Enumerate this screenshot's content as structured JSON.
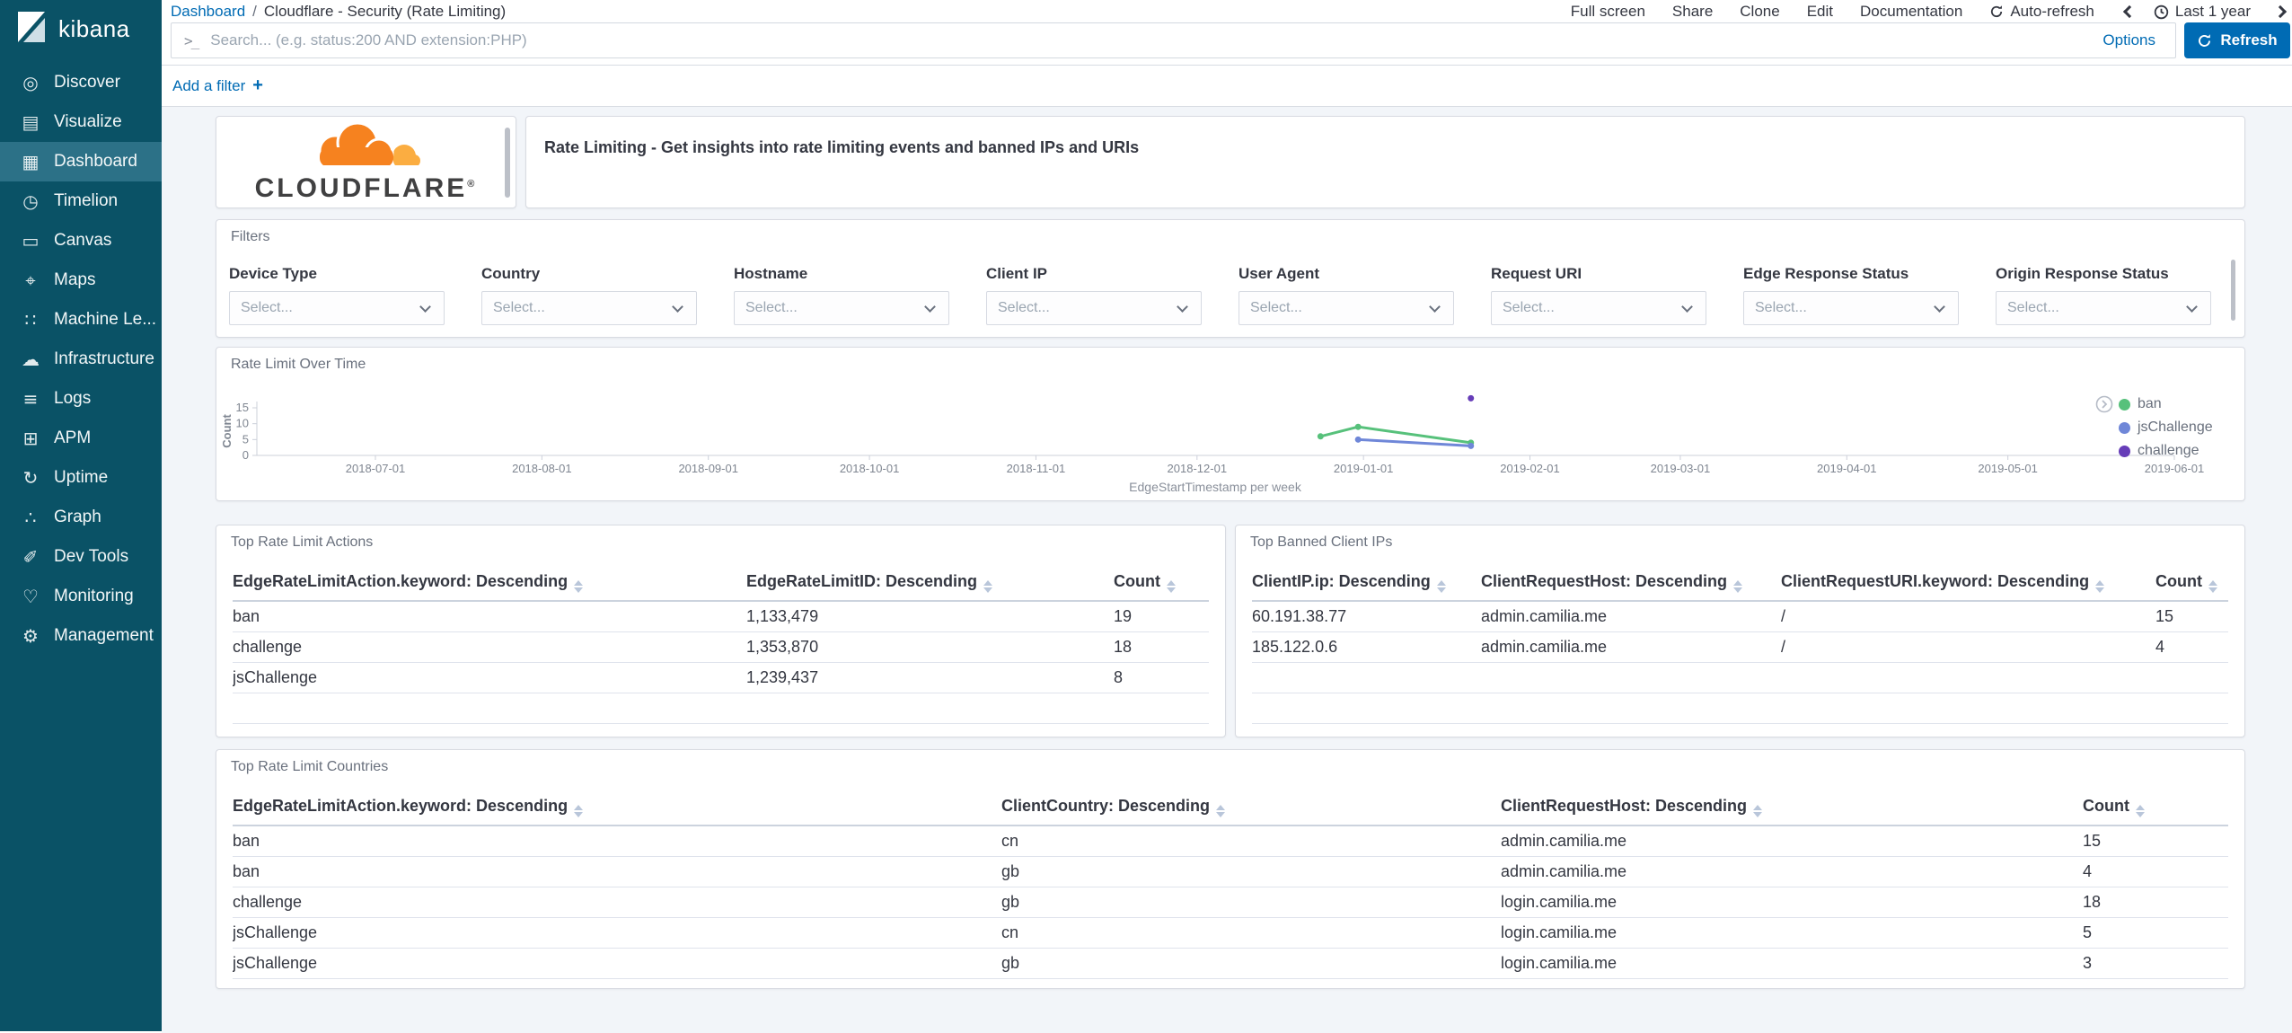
{
  "brand": {
    "app_name": "kibana"
  },
  "sidebar": {
    "items": [
      {
        "label": "Discover",
        "icon": "discover-icon",
        "glyph": "◎",
        "active": false
      },
      {
        "label": "Visualize",
        "icon": "visualize-icon",
        "glyph": "▤",
        "active": false
      },
      {
        "label": "Dashboard",
        "icon": "dashboard-icon",
        "glyph": "▦",
        "active": true
      },
      {
        "label": "Timelion",
        "icon": "timelion-icon",
        "glyph": "◷",
        "active": false
      },
      {
        "label": "Canvas",
        "icon": "canvas-icon",
        "glyph": "▭",
        "active": false
      },
      {
        "label": "Maps",
        "icon": "maps-icon",
        "glyph": "⌖",
        "active": false
      },
      {
        "label": "Machine Le...",
        "icon": "machine-learning-icon",
        "glyph": "∷",
        "active": false
      },
      {
        "label": "Infrastructure",
        "icon": "infrastructure-icon",
        "glyph": "☁",
        "active": false
      },
      {
        "label": "Logs",
        "icon": "logs-icon",
        "glyph": "≡",
        "active": false
      },
      {
        "label": "APM",
        "icon": "apm-icon",
        "glyph": "⊞",
        "active": false
      },
      {
        "label": "Uptime",
        "icon": "uptime-icon",
        "glyph": "↻",
        "active": false
      },
      {
        "label": "Graph",
        "icon": "graph-icon",
        "glyph": "∴",
        "active": false
      },
      {
        "label": "Dev Tools",
        "icon": "dev-tools-icon",
        "glyph": "✐",
        "active": false
      },
      {
        "label": "Monitoring",
        "icon": "monitoring-icon",
        "glyph": "♡",
        "active": false
      },
      {
        "label": "Management",
        "icon": "management-icon",
        "glyph": "⚙",
        "active": false
      }
    ]
  },
  "topbar": {
    "breadcrumb_root": "Dashboard",
    "breadcrumb_sep": "/",
    "breadcrumb_current": "Cloudflare - Security (Rate Limiting)",
    "menu": [
      "Full screen",
      "Share",
      "Clone",
      "Edit",
      "Documentation"
    ],
    "auto_refresh_label": "Auto-refresh",
    "time_range_label": "Last 1 year"
  },
  "search_bar": {
    "placeholder": "Search... (e.g. status:200 AND extension:PHP)",
    "options_label": "Options",
    "refresh_label": "Refresh"
  },
  "filter_bar": {
    "add_label": "Add a filter",
    "plus": "+"
  },
  "panels": {
    "logo": {
      "brand_text": "CLOUDFLARE",
      "registered_mark": "®"
    },
    "banner": {
      "text": "Rate Limiting - Get insights into rate limiting events and banned IPs and URIs"
    },
    "filters": {
      "title": "Filters",
      "select_placeholder": "Select...",
      "fields": [
        "Device Type",
        "Country",
        "Hostname",
        "Client IP",
        "User Agent",
        "Request URI",
        "Edge Response Status",
        "Origin Response Status"
      ]
    },
    "chart": {
      "title": "Rate Limit Over Time"
    },
    "top_actions": {
      "title": "Top Rate Limit Actions",
      "columns": [
        "EdgeRateLimitAction.keyword: Descending",
        "EdgeRateLimitID: Descending",
        "Count"
      ],
      "rows": [
        [
          "ban",
          "1,133,479",
          "19"
        ],
        [
          "challenge",
          "1,353,870",
          "18"
        ],
        [
          "jsChallenge",
          "1,239,437",
          "8"
        ]
      ]
    },
    "top_banned_ips": {
      "title": "Top Banned Client IPs",
      "columns": [
        "ClientIP.ip: Descending",
        "ClientRequestHost: Descending",
        "ClientRequestURI.keyword: Descending",
        "Count"
      ],
      "rows": [
        [
          "60.191.38.77",
          "admin.camilia.me",
          "/",
          "15"
        ],
        [
          "185.122.0.6",
          "admin.camilia.me",
          "/",
          "4"
        ]
      ]
    },
    "top_countries": {
      "title": "Top Rate Limit Countries",
      "columns": [
        "EdgeRateLimitAction.keyword: Descending",
        "ClientCountry: Descending",
        "ClientRequestHost: Descending",
        "Count"
      ],
      "rows": [
        [
          "ban",
          "cn",
          "admin.camilia.me",
          "15"
        ],
        [
          "ban",
          "gb",
          "admin.camilia.me",
          "4"
        ],
        [
          "challenge",
          "gb",
          "login.camilia.me",
          "18"
        ],
        [
          "jsChallenge",
          "cn",
          "login.camilia.me",
          "5"
        ],
        [
          "jsChallenge",
          "gb",
          "login.camilia.me",
          "3"
        ]
      ]
    }
  },
  "chart_data": {
    "type": "line",
    "title": "Rate Limit Over Time",
    "xlabel": "EdgeStartTimestamp per week",
    "ylabel": "Count",
    "x_ticks": [
      "2018-07-01",
      "2018-08-01",
      "2018-09-01",
      "2018-10-01",
      "2018-11-01",
      "2018-12-01",
      "2019-01-01",
      "2019-02-01",
      "2019-03-01",
      "2019-04-01",
      "2019-05-01",
      "2019-06-01"
    ],
    "y_ticks": [
      0,
      5,
      10,
      15
    ],
    "ylim": [
      0,
      19
    ],
    "grid": false,
    "legend_position": "right",
    "series": [
      {
        "name": "ban",
        "color": "#57c17b",
        "points": [
          {
            "x": "2018-12-24",
            "y": 6
          },
          {
            "x": "2018-12-31",
            "y": 9
          },
          {
            "x": "2019-01-21",
            "y": 4
          }
        ]
      },
      {
        "name": "jsChallenge",
        "color": "#6f87d8",
        "points": [
          {
            "x": "2018-12-31",
            "y": 5
          },
          {
            "x": "2019-01-21",
            "y": 3
          }
        ]
      },
      {
        "name": "challenge",
        "color": "#663db8",
        "points": [
          {
            "x": "2019-01-21",
            "y": 18
          }
        ]
      }
    ]
  },
  "colors": {
    "accent_blue": "#006bb4",
    "sidebar_bg": "#0a5266",
    "sidebar_active": "#2c7187",
    "cloudflare_orange": "#f6821f",
    "cloudflare_light_orange": "#fbad41"
  }
}
